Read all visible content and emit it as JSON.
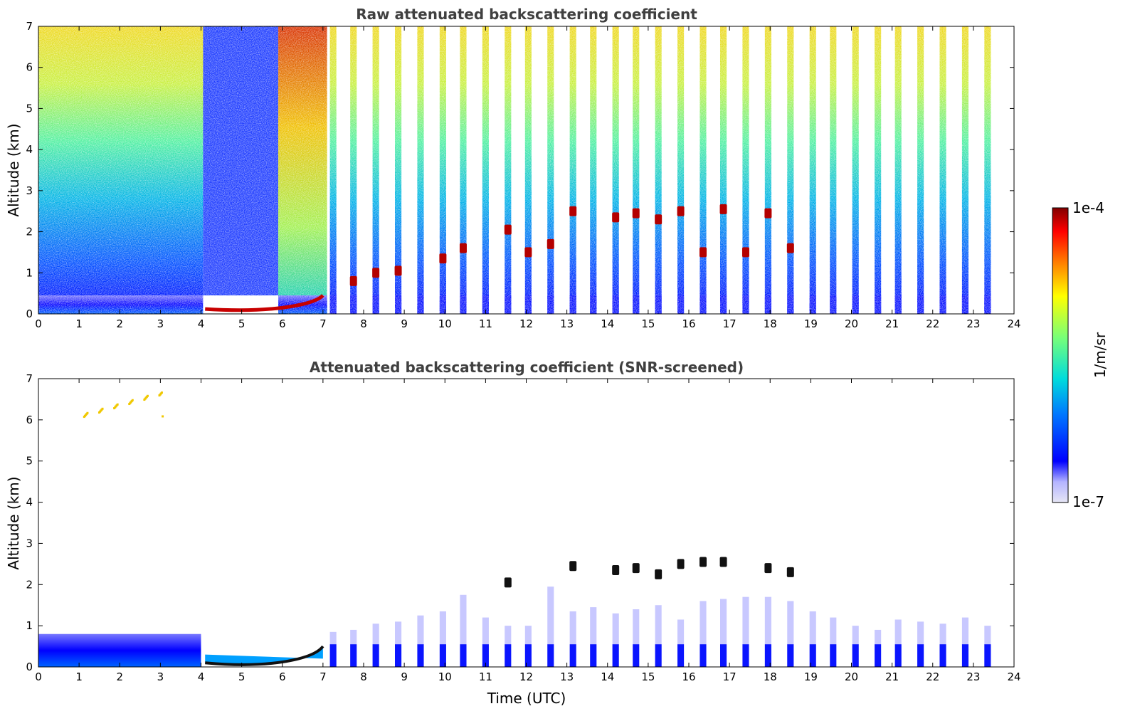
{
  "chart_data": [
    {
      "type": "heatmap",
      "title": "Raw attenuated backscattering coefficient",
      "xlabel": "",
      "ylabel": "Altitude (km)",
      "xlim": [
        0,
        24
      ],
      "ylim": [
        0,
        7
      ],
      "xticks": [
        0,
        1,
        2,
        3,
        4,
        5,
        6,
        7,
        8,
        9,
        10,
        11,
        12,
        13,
        14,
        15,
        16,
        17,
        18,
        19,
        20,
        21,
        22,
        23,
        24
      ],
      "yticks": [
        0,
        1,
        2,
        3,
        4,
        5,
        6,
        7
      ],
      "continuous_coverage": [
        [
          0,
          4.05
        ],
        [
          4.05,
          5.9
        ],
        [
          5.9,
          7.1
        ]
      ],
      "profile_times": [
        7.25,
        7.75,
        8.3,
        8.85,
        9.4,
        9.95,
        10.45,
        11.0,
        11.55,
        12.05,
        12.6,
        13.15,
        13.65,
        14.2,
        14.7,
        15.25,
        15.8,
        16.35,
        16.85,
        17.4,
        17.95,
        18.5,
        19.05,
        19.55,
        20.1,
        20.65,
        21.15,
        21.7,
        22.25,
        22.8,
        23.35
      ],
      "boundary_layer_top_km": 0.45,
      "cloud_layers": [
        {
          "time": 7.75,
          "altitude_km": 0.8
        },
        {
          "time": 8.3,
          "altitude_km": 1.0
        },
        {
          "time": 8.85,
          "altitude_km": 1.05
        },
        {
          "time": 9.95,
          "altitude_km": 1.35
        },
        {
          "time": 10.45,
          "altitude_km": 1.6
        },
        {
          "time": 11.55,
          "altitude_km": 2.05
        },
        {
          "time": 12.05,
          "altitude_km": 1.5
        },
        {
          "time": 12.6,
          "altitude_km": 1.7
        },
        {
          "time": 13.15,
          "altitude_km": 2.5
        },
        {
          "time": 14.2,
          "altitude_km": 2.35
        },
        {
          "time": 14.7,
          "altitude_km": 2.45
        },
        {
          "time": 15.25,
          "altitude_km": 2.3
        },
        {
          "time": 15.8,
          "altitude_km": 2.5
        },
        {
          "time": 16.35,
          "altitude_km": 1.5
        },
        {
          "time": 16.85,
          "altitude_km": 2.55
        },
        {
          "time": 17.4,
          "altitude_km": 1.5
        },
        {
          "time": 17.95,
          "altitude_km": 2.45
        },
        {
          "time": 18.5,
          "altitude_km": 1.6
        }
      ]
    },
    {
      "type": "heatmap",
      "title": "Attenuated backscattering coefficient (SNR-screened)",
      "xlabel": "Time (UTC)",
      "ylabel": "Altitude (km)",
      "xlim": [
        0,
        24
      ],
      "ylim": [
        0,
        7
      ],
      "xticks": [
        0,
        1,
        2,
        3,
        4,
        5,
        6,
        7,
        8,
        9,
        10,
        11,
        12,
        13,
        14,
        15,
        16,
        17,
        18,
        19,
        20,
        21,
        22,
        23,
        24
      ],
      "yticks": [
        0,
        1,
        2,
        3,
        4,
        5,
        6,
        7
      ],
      "continuous_coverage": [
        [
          0,
          7.1
        ]
      ],
      "profile_times": [
        7.25,
        7.75,
        8.3,
        8.85,
        9.4,
        9.95,
        10.45,
        11.0,
        11.55,
        12.05,
        12.6,
        13.15,
        13.65,
        14.2,
        14.7,
        15.25,
        15.8,
        16.35,
        16.85,
        17.4,
        17.95,
        18.5,
        19.05,
        19.55,
        20.1,
        20.65,
        21.15,
        21.7,
        22.25,
        22.8,
        23.35
      ],
      "profile_tops_km": [
        0.85,
        0.9,
        1.05,
        1.1,
        1.25,
        1.35,
        1.75,
        1.2,
        1.0,
        1.0,
        1.95,
        1.35,
        1.45,
        1.3,
        1.4,
        1.5,
        1.15,
        1.6,
        1.65,
        1.7,
        1.7,
        1.6,
        1.35,
        1.2,
        1.0,
        0.9,
        1.15,
        1.1,
        1.05,
        1.2,
        1.0
      ],
      "boundary_layer_top_km": 0.8,
      "elevated_aerosol": [
        {
          "time_range": [
            1.1,
            3.3
          ],
          "altitude_km": [
            6.1,
            6.7
          ]
        }
      ],
      "cloud_layers": [
        {
          "time": 11.55,
          "altitude_km": 2.05
        },
        {
          "time": 13.15,
          "altitude_km": 2.45
        },
        {
          "time": 14.2,
          "altitude_km": 2.35
        },
        {
          "time": 14.7,
          "altitude_km": 2.4
        },
        {
          "time": 15.25,
          "altitude_km": 2.25
        },
        {
          "time": 15.8,
          "altitude_km": 2.5
        },
        {
          "time": 16.35,
          "altitude_km": 2.55
        },
        {
          "time": 16.85,
          "altitude_km": 2.55
        },
        {
          "time": 17.95,
          "altitude_km": 2.4
        },
        {
          "time": 18.5,
          "altitude_km": 2.3
        }
      ]
    }
  ],
  "colorbar": {
    "label": "1/m/sr",
    "max_label": "1e-4",
    "min_label": "1e-7",
    "scale": "log",
    "colormap": [
      "#e6e6f5",
      "#b4b4ff",
      "#0000ff",
      "#0078ff",
      "#00dcdc",
      "#78ff78",
      "#ffff00",
      "#ff7800",
      "#ff0000",
      "#820000"
    ]
  }
}
